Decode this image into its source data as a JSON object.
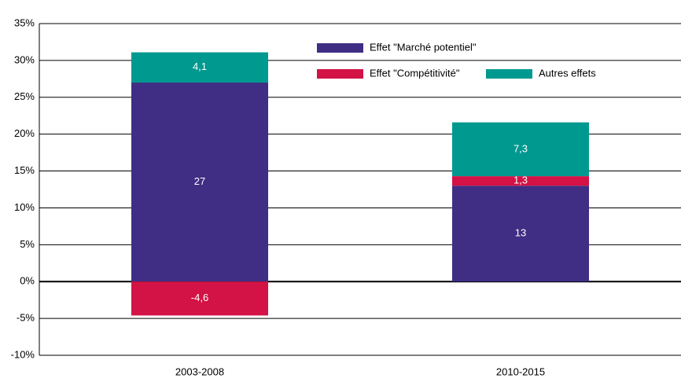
{
  "chart_data": {
    "type": "stacked_bar",
    "categories": [
      "2003-2008",
      "2010-2015"
    ],
    "series": [
      {
        "name": "Effet \"Marché potentiel\"",
        "color": "#3f2e84",
        "values": [
          27,
          13
        ],
        "value_labels": [
          "27",
          "13"
        ]
      },
      {
        "name": "Effet \"Compétitivité\"",
        "color": "#d31245",
        "values": [
          -4.6,
          1.3
        ],
        "value_labels": [
          "-4,6",
          "1,3"
        ]
      },
      {
        "name": "Autres effets",
        "color": "#009990",
        "values": [
          4.1,
          7.3
        ],
        "value_labels": [
          "4,1",
          "7,3"
        ]
      }
    ],
    "ylim": [
      -10,
      35
    ],
    "yticks": [
      {
        "value": -10,
        "label": "-10%"
      },
      {
        "value": -5,
        "label": "-5%"
      },
      {
        "value": 0,
        "label": "0%"
      },
      {
        "value": 5,
        "label": "5%"
      },
      {
        "value": 10,
        "label": "10%"
      },
      {
        "value": 15,
        "label": "15%"
      },
      {
        "value": 20,
        "label": "20%"
      },
      {
        "value": 25,
        "label": "25%"
      },
      {
        "value": 30,
        "label": "30%"
      },
      {
        "value": 35,
        "label": "35%"
      }
    ],
    "grid": true
  }
}
